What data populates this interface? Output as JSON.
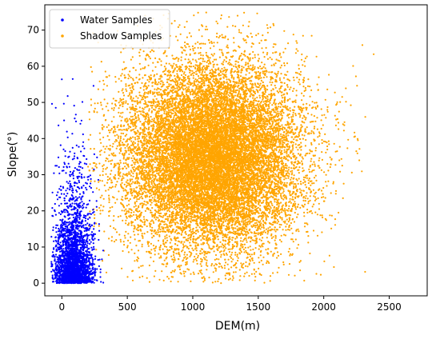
{
  "chart_data": {
    "type": "scatter",
    "title": "",
    "xlabel": "DEM(m)",
    "ylabel": "Slope(°)",
    "xlim": [
      -130,
      2790
    ],
    "ylim": [
      -3.5,
      77
    ],
    "xticks": [
      0,
      500,
      1000,
      1500,
      2000,
      2500
    ],
    "yticks": [
      0,
      10,
      20,
      30,
      40,
      50,
      60,
      70
    ],
    "grid": false,
    "legend_position": "top-left",
    "series": [
      {
        "name": "Water Samples",
        "color": "#0000ff",
        "distribution": {
          "x_mean": 90,
          "x_std": 75,
          "x_min": -80,
          "x_max": 480,
          "y_mean": 12,
          "y_std": 10,
          "y_min": 0,
          "y_max": 57,
          "count": 2600
        }
      },
      {
        "name": "Shadow Samples",
        "color": "#ffa500",
        "distribution": {
          "x_mean": 1150,
          "x_std": 340,
          "x_min": 200,
          "x_max": 2720,
          "y_mean": 35,
          "y_std": 13,
          "y_min": 0,
          "y_max": 75,
          "count": 16000
        }
      }
    ]
  }
}
